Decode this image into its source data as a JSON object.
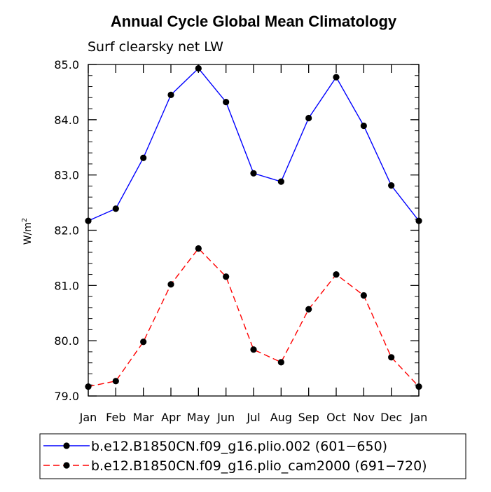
{
  "chart_data": {
    "type": "line",
    "title": "Annual Cycle Global Mean Climatology",
    "subtitle": "Surf clearsky net LW",
    "ylabel": "W/m",
    "ylabel_sup": "2",
    "xlabel": "",
    "categories": [
      "Jan",
      "Feb",
      "Mar",
      "Apr",
      "May",
      "Jun",
      "Jul",
      "Aug",
      "Sep",
      "Oct",
      "Nov",
      "Dec",
      "Jan"
    ],
    "ylim": [
      79.0,
      85.0
    ],
    "yticks": [
      "79.0",
      "80.0",
      "81.0",
      "82.0",
      "83.0",
      "84.0",
      "85.0"
    ],
    "series": [
      {
        "name": "b.e12.B1850CN.f09_g16.plio.002 (601−650)",
        "color": "#0000ff",
        "dash": "solid",
        "values": [
          82.17,
          82.39,
          83.31,
          84.45,
          84.93,
          84.32,
          83.03,
          82.88,
          84.03,
          84.77,
          83.89,
          82.81,
          82.17
        ]
      },
      {
        "name": "b.e12.B1850CN.f09_g16.plio_cam2000 (691−720)",
        "color": "#ff0000",
        "dash": "dashed",
        "values": [
          79.17,
          79.27,
          79.98,
          81.02,
          81.67,
          81.16,
          79.84,
          79.61,
          80.57,
          81.2,
          80.82,
          79.7,
          79.17
        ]
      }
    ],
    "marker": "filled-circle",
    "legend_position": "bottom"
  }
}
